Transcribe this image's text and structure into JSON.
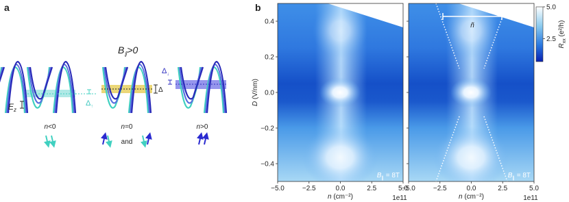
{
  "panel_a": {
    "label": "a",
    "title": {
      "main": "B",
      "sub": "∥",
      "rest": ">0"
    },
    "ez": {
      "main": "E",
      "sub": "z"
    },
    "delta_up": {
      "main": "Δ",
      "sub": "↑"
    },
    "delta": "Δ",
    "delta_down": {
      "main": "Δ",
      "sub": "↓"
    },
    "states": [
      {
        "main": "n",
        "rest": "<0"
      },
      {
        "main": "n",
        "rest": "=0"
      },
      {
        "main": "n",
        "rest": ">0"
      }
    ],
    "and": "and"
  },
  "panel_b": {
    "label": "b",
    "xlim": [
      -5,
      5
    ],
    "ylim": [
      -0.5,
      0.5
    ],
    "xticks": [
      {
        "value": -5,
        "label": "−5.0"
      },
      {
        "value": -2.5,
        "label": "−2.5"
      },
      {
        "value": 0,
        "label": "0.0"
      },
      2.5,
      {
        "value": 5,
        "label": "5.0"
      }
    ],
    "yticks": [
      {
        "value": -0.4,
        "label": "−0.4"
      },
      {
        "value": -0.2,
        "label": "−0.2"
      },
      {
        "value": 0,
        "label": "0.0"
      },
      0.2,
      0.4
    ],
    "x_label": {
      "main": "n",
      "rest": " (cm⁻²)"
    },
    "x_offset": "1e11",
    "y_label": {
      "main": "D",
      "rest": " (V/nm)"
    },
    "field_label": {
      "main": "B",
      "sub": "∥",
      "rest": " = 8T"
    },
    "gap_label": "ñ",
    "colorbar": {
      "lim": [
        0.7,
        5
      ],
      "ticks": [
        2.5,
        {
          "value": 5,
          "label": "5.0"
        }
      ],
      "label": {
        "main": "R",
        "sub": "xx",
        "rest": " (e²/h)"
      }
    }
  }
}
